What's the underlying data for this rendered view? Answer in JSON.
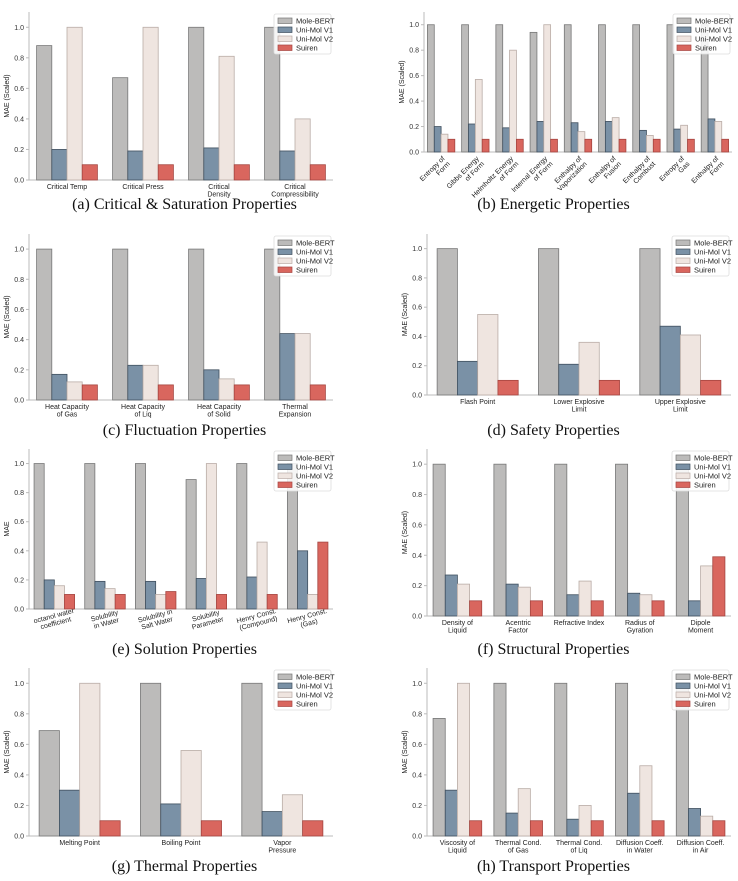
{
  "legend_colors": {
    "Mole-BERT": "#bcbbba",
    "Uni-Mol V1": "#7a91a6",
    "Uni-Mol V2": "#efe5e0",
    "Suiren": "#d9665e"
  },
  "chart_data": [
    {
      "id": "a",
      "type": "bar",
      "caption": "(a) Critical & Saturation Properties",
      "ylabel": "MAE (Scaled)",
      "ylim": [
        0,
        1.1
      ],
      "yticks": [
        "0.0",
        "0.2",
        "0.4",
        "0.6",
        "0.8",
        "1.0"
      ],
      "rotate": false,
      "legend": [
        "Mole-BERT",
        "Uni-Mol V1",
        "Uni-Mol V2",
        "Suiren"
      ],
      "legend_position": "top-right",
      "categories": [
        [
          "Critical Temp"
        ],
        [
          "Critical Press"
        ],
        [
          "Critical",
          "Density"
        ],
        [
          "Critical",
          "Compressibility"
        ]
      ],
      "series": [
        {
          "name": "Mole-BERT",
          "values": [
            0.88,
            0.67,
            1.0,
            1.0
          ]
        },
        {
          "name": "Uni-Mol V1",
          "values": [
            0.2,
            0.19,
            0.21,
            0.19
          ]
        },
        {
          "name": "Uni-Mol V2",
          "values": [
            1.0,
            1.0,
            0.81,
            0.4
          ]
        },
        {
          "name": "Suiren",
          "values": [
            0.1,
            0.1,
            0.1,
            0.1
          ]
        }
      ]
    },
    {
      "id": "b",
      "type": "bar",
      "caption": "(b) Energetic Properties",
      "ylabel": "MAE (Scaled)",
      "ylim": [
        0,
        1.1
      ],
      "yticks": [
        "0.0",
        "0.2",
        "0.4",
        "0.6",
        "0.8",
        "1.0"
      ],
      "rotate": true,
      "legend": [
        "Mole-BERT",
        "Uni-Mol V1",
        "Uni-Mol V2",
        "Suiren"
      ],
      "legend_position": "top-right",
      "categories": [
        [
          "Entropy of",
          "Form"
        ],
        [
          "Gibbs Energy",
          "of Form"
        ],
        [
          "Helmholtz Energy",
          "of Form"
        ],
        [
          "Internal Energy",
          "of Form"
        ],
        [
          "Enthalpy of",
          "Vaporization"
        ],
        [
          "Enthalpy of",
          "Fusion"
        ],
        [
          "Enthalpy of",
          "Combust"
        ],
        [
          "Entropy of",
          "Gas"
        ],
        [
          "Enthalpy of",
          "Form"
        ]
      ],
      "series": [
        {
          "name": "Mole-BERT",
          "values": [
            1.0,
            1.0,
            1.0,
            0.94,
            1.0,
            1.0,
            1.0,
            1.0,
            1.0
          ]
        },
        {
          "name": "Uni-Mol V1",
          "values": [
            0.2,
            0.22,
            0.19,
            0.24,
            0.23,
            0.24,
            0.17,
            0.18,
            0.26
          ]
        },
        {
          "name": "Uni-Mol V2",
          "values": [
            0.14,
            0.57,
            0.8,
            1.0,
            0.16,
            0.27,
            0.13,
            0.21,
            0.24
          ]
        },
        {
          "name": "Suiren",
          "values": [
            0.1,
            0.1,
            0.1,
            0.1,
            0.1,
            0.1,
            0.1,
            0.1,
            0.1
          ]
        }
      ]
    },
    {
      "id": "c",
      "type": "bar",
      "caption": "(c) Fluctuation Properties",
      "ylabel": "MAE (Scaled)",
      "ylim": [
        0,
        1.1
      ],
      "yticks": [
        "0.0",
        "0.2",
        "0.4",
        "0.6",
        "0.8",
        "1.0"
      ],
      "rotate": false,
      "legend": [
        "Mole-BERT",
        "Uni-Mol V1",
        "Uni-Mol V2",
        "Suiren"
      ],
      "legend_position": "top-right",
      "categories": [
        [
          "Heat Capacity",
          "of Gas"
        ],
        [
          "Heat Capacity",
          "of Liq"
        ],
        [
          "Heat Capacity",
          "of Solid"
        ],
        [
          "Thermal",
          "Expansion"
        ]
      ],
      "series": [
        {
          "name": "Mole-BERT",
          "values": [
            1.0,
            1.0,
            1.0,
            1.0
          ]
        },
        {
          "name": "Uni-Mol V1",
          "values": [
            0.17,
            0.23,
            0.2,
            0.44
          ]
        },
        {
          "name": "Uni-Mol V2",
          "values": [
            0.12,
            0.23,
            0.14,
            0.44
          ]
        },
        {
          "name": "Suiren",
          "values": [
            0.1,
            0.1,
            0.1,
            0.1
          ]
        }
      ]
    },
    {
      "id": "d",
      "type": "bar",
      "caption": "(d) Safety Properties",
      "ylabel": "MAE (Scaled)",
      "ylim": [
        0,
        1.1
      ],
      "yticks": [
        "0.0",
        "0.2",
        "0.4",
        "0.6",
        "0.8",
        "1.0"
      ],
      "rotate": false,
      "legend": [
        "Mole-BERT",
        "Uni-Mol V1",
        "Uni-Mol V2",
        "Suiren"
      ],
      "legend_position": "top-right",
      "categories": [
        [
          "Flash Point"
        ],
        [
          "Lower Explosive",
          "Limit"
        ],
        [
          "Upper Explosive",
          "Limit"
        ]
      ],
      "series": [
        {
          "name": "Mole-BERT",
          "values": [
            1.0,
            1.0,
            1.0
          ]
        },
        {
          "name": "Uni-Mol V1",
          "values": [
            0.23,
            0.21,
            0.47
          ]
        },
        {
          "name": "Uni-Mol V2",
          "values": [
            0.55,
            0.36,
            0.41
          ]
        },
        {
          "name": "Suiren",
          "values": [
            0.1,
            0.1,
            0.1
          ]
        }
      ]
    },
    {
      "id": "e",
      "type": "bar",
      "caption": "(e) Solution Properties",
      "ylabel": "MAE",
      "ylim": [
        0,
        1.1
      ],
      "yticks": [
        "0.0",
        "0.2",
        "0.4",
        "0.6",
        "0.8",
        "1.0"
      ],
      "rotate": "slight",
      "legend": [
        "Mole-BERT",
        "Uni-Mol V1",
        "Uni-Mol V2",
        "Suiren"
      ],
      "legend_position": "top-right",
      "categories": [
        [
          "octanol water",
          "coefficient"
        ],
        [
          "Solubility",
          "in Water"
        ],
        [
          "Solubility in",
          "Salt Water"
        ],
        [
          "Solubility",
          "Parameter"
        ],
        [
          "Henry Const.",
          "(Compound)"
        ],
        [
          "Henry Const.",
          "(Gas)"
        ]
      ],
      "series": [
        {
          "name": "Mole-BERT",
          "values": [
            1.0,
            1.0,
            1.0,
            0.89,
            1.0,
            1.0
          ]
        },
        {
          "name": "Uni-Mol V1",
          "values": [
            0.2,
            0.19,
            0.19,
            0.21,
            0.22,
            0.4
          ]
        },
        {
          "name": "Uni-Mol V2",
          "values": [
            0.16,
            0.14,
            0.1,
            1.0,
            0.46,
            0.1
          ]
        },
        {
          "name": "Suiren",
          "values": [
            0.1,
            0.1,
            0.12,
            0.1,
            0.1,
            0.46
          ]
        }
      ]
    },
    {
      "id": "f",
      "type": "bar",
      "caption": "(f) Structural Properties",
      "ylabel": "MAE (Scaled)",
      "ylim": [
        0,
        1.1
      ],
      "yticks": [
        "0.0",
        "0.2",
        "0.4",
        "0.6",
        "0.8",
        "1.0"
      ],
      "rotate": false,
      "legend": [
        "Mole-BERT",
        "Uni-Mol V1",
        "Uni-Mol V2",
        "Suiren"
      ],
      "legend_position": "top-right",
      "categories": [
        [
          "Density of",
          "Liquid"
        ],
        [
          "Acentric",
          "Factor"
        ],
        [
          "Refractive Index"
        ],
        [
          "Radius of",
          "Gyration"
        ],
        [
          "Dipole",
          "Moment"
        ]
      ],
      "series": [
        {
          "name": "Mole-BERT",
          "values": [
            1.0,
            1.0,
            1.0,
            1.0,
            1.0
          ]
        },
        {
          "name": "Uni-Mol V1",
          "values": [
            0.27,
            0.21,
            0.14,
            0.15,
            0.1
          ]
        },
        {
          "name": "Uni-Mol V2",
          "values": [
            0.21,
            0.19,
            0.23,
            0.14,
            0.33
          ]
        },
        {
          "name": "Suiren",
          "values": [
            0.1,
            0.1,
            0.1,
            0.1,
            0.39
          ]
        }
      ]
    },
    {
      "id": "g",
      "type": "bar",
      "caption": "(g) Thermal Properties",
      "ylabel": "MAE (Scaled)",
      "ylim": [
        0,
        1.1
      ],
      "yticks": [
        "0.0",
        "0.2",
        "0.4",
        "0.6",
        "0.8",
        "1.0"
      ],
      "rotate": false,
      "legend": [
        "Mole-BERT",
        "Uni-Mol V1",
        "Uni-Mol V2",
        "Suiren"
      ],
      "legend_position": "top-right",
      "categories": [
        [
          "Melting Point"
        ],
        [
          "Boiling Point"
        ],
        [
          "Vapor",
          "Pressure"
        ]
      ],
      "series": [
        {
          "name": "Mole-BERT",
          "values": [
            0.69,
            1.0,
            1.0
          ]
        },
        {
          "name": "Uni-Mol V1",
          "values": [
            0.3,
            0.21,
            0.16
          ]
        },
        {
          "name": "Uni-Mol V2",
          "values": [
            1.0,
            0.56,
            0.27
          ]
        },
        {
          "name": "Suiren",
          "values": [
            0.1,
            0.1,
            0.1
          ]
        }
      ]
    },
    {
      "id": "h",
      "type": "bar",
      "caption": "(h) Transport Properties",
      "ylabel": "MAE (Scaled)",
      "ylim": [
        0,
        1.1
      ],
      "yticks": [
        "0.0",
        "0.2",
        "0.4",
        "0.6",
        "0.8",
        "1.0"
      ],
      "rotate": false,
      "legend": [
        "Mole-BERT",
        "Uni-Mol V1",
        "Uni-Mol V2",
        "Suiren"
      ],
      "legend_position": "top-right",
      "categories": [
        [
          "Viscosity of",
          "Liquid"
        ],
        [
          "Thermal Cond.",
          "of Gas"
        ],
        [
          "Thermal Cond.",
          "of Liq"
        ],
        [
          "Diffusion Coeff.",
          "in Water"
        ],
        [
          "Diffusion Coeff.",
          "in Air"
        ]
      ],
      "series": [
        {
          "name": "Mole-BERT",
          "values": [
            0.77,
            1.0,
            1.0,
            1.0,
            1.0
          ]
        },
        {
          "name": "Uni-Mol V1",
          "values": [
            0.3,
            0.15,
            0.11,
            0.28,
            0.18
          ]
        },
        {
          "name": "Uni-Mol V2",
          "values": [
            1.0,
            0.31,
            0.2,
            0.46,
            0.13
          ]
        },
        {
          "name": "Suiren",
          "values": [
            0.1,
            0.1,
            0.1,
            0.1,
            0.1
          ]
        }
      ]
    }
  ]
}
